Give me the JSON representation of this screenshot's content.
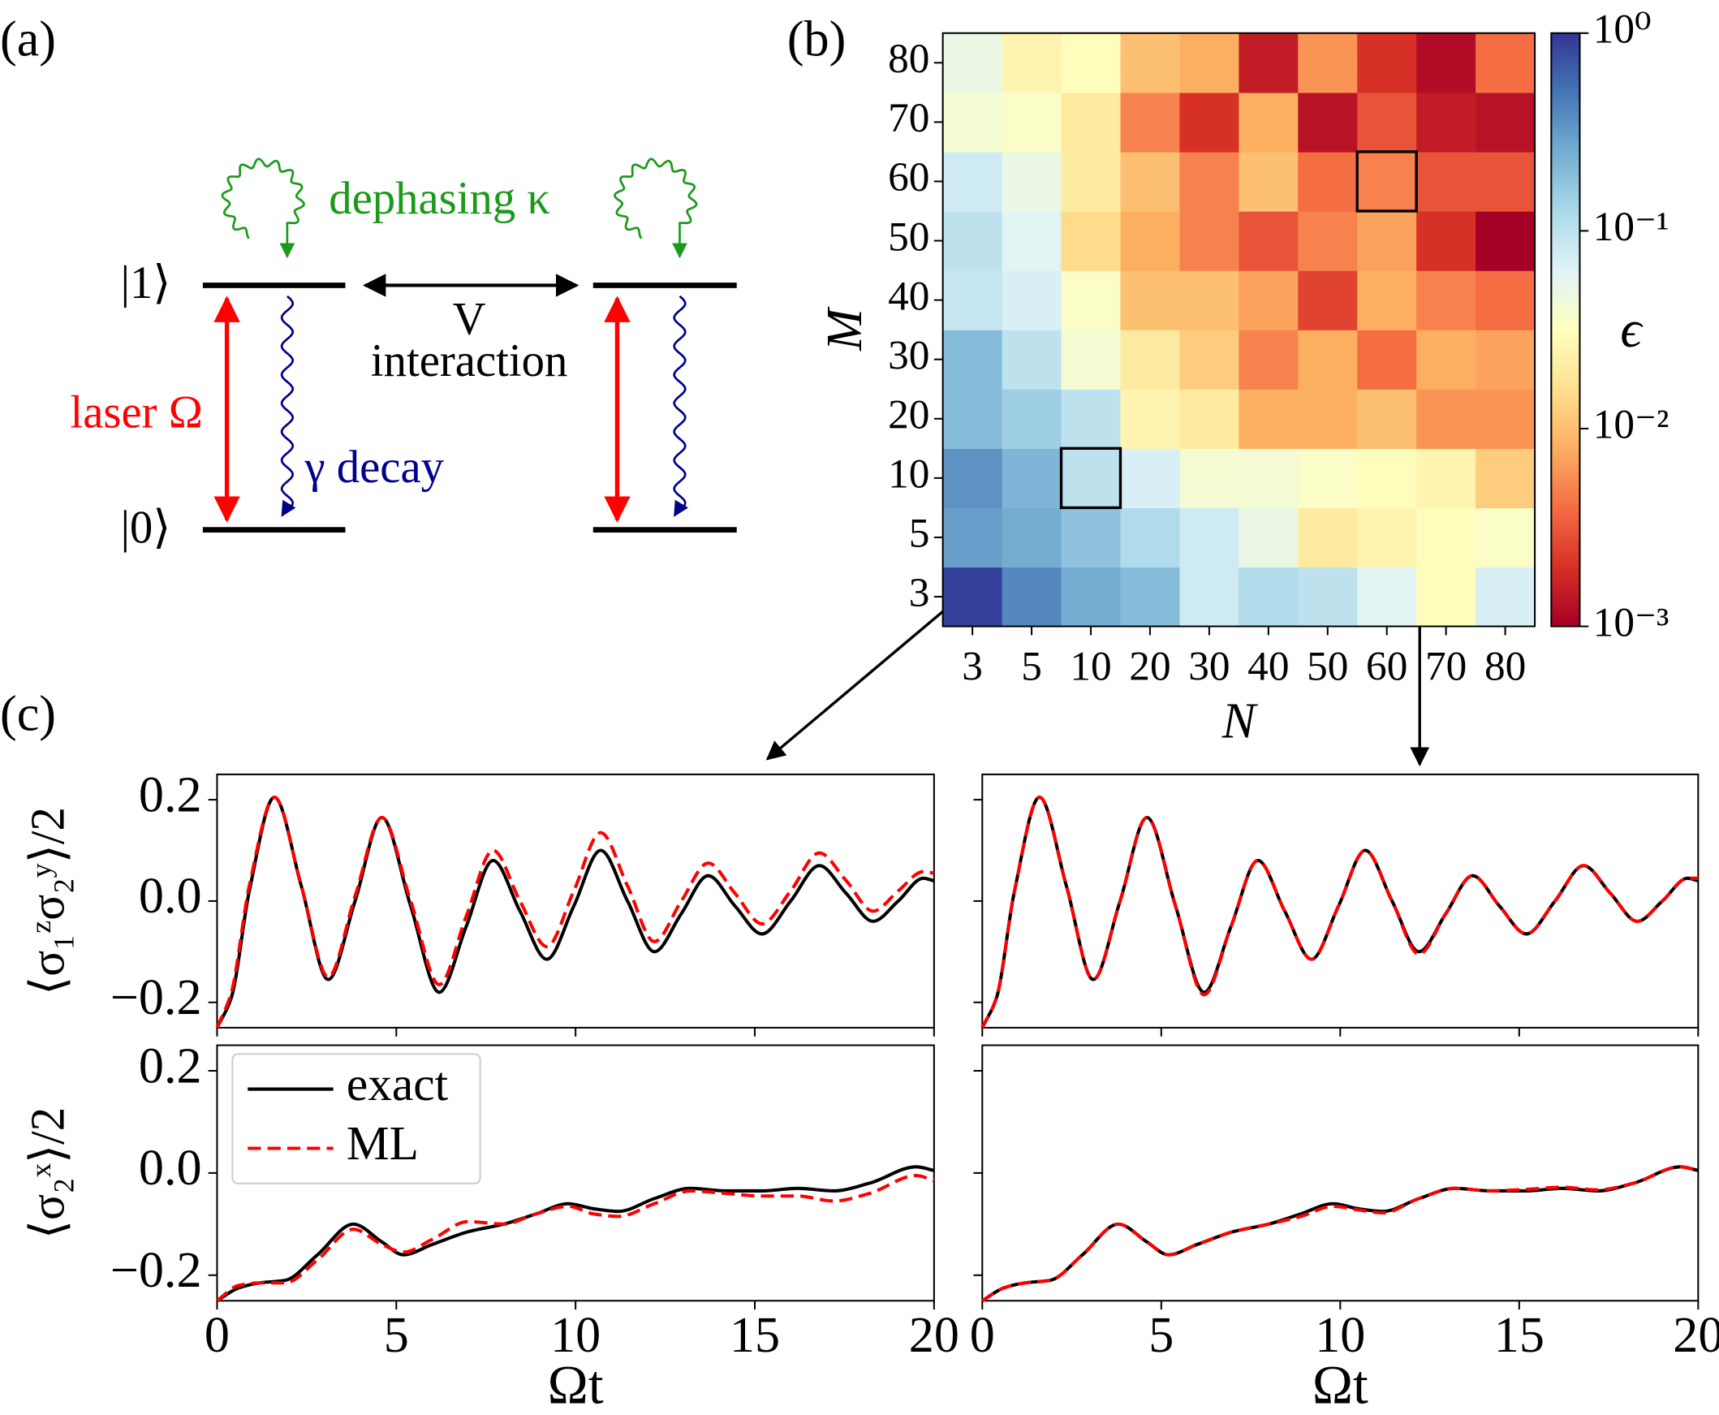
{
  "panel_labels": [
    "(a)",
    "(b)",
    "(c)"
  ],
  "diagram": {
    "dephasing": "dephasing κ",
    "level1_left": "|1⟩",
    "level0_left": "|0⟩",
    "interaction_symbol": "V",
    "interaction": "interaction",
    "laser": "laser Ω",
    "decay": "γ decay"
  },
  "chart_data": [
    {
      "type": "heatmap",
      "xlabel": "N",
      "ylabel": "M",
      "x_categories": [
        3,
        5,
        10,
        20,
        30,
        40,
        50,
        60,
        70,
        80
      ],
      "y_categories": [
        3,
        5,
        10,
        20,
        30,
        40,
        50,
        60,
        70,
        80
      ],
      "values": [
        [
          0.9,
          0.4,
          0.25,
          0.2,
          0.08,
          0.12,
          0.1,
          0.06,
          0.03,
          0.07
        ],
        [
          0.3,
          0.25,
          0.18,
          0.12,
          0.08,
          0.05,
          0.02,
          0.025,
          0.03,
          0.035
        ],
        [
          0.35,
          0.22,
          0.1,
          0.07,
          0.04,
          0.04,
          0.035,
          0.03,
          0.025,
          0.012
        ],
        [
          0.2,
          0.15,
          0.1,
          0.025,
          0.02,
          0.008,
          0.008,
          0.01,
          0.006,
          0.006
        ],
        [
          0.2,
          0.1,
          0.04,
          0.02,
          0.012,
          0.005,
          0.008,
          0.004,
          0.008,
          0.007
        ],
        [
          0.09,
          0.07,
          0.035,
          0.01,
          0.01,
          0.007,
          0.0025,
          0.008,
          0.005,
          0.004
        ],
        [
          0.1,
          0.06,
          0.015,
          0.008,
          0.005,
          0.003,
          0.005,
          0.007,
          0.002,
          0.001
        ],
        [
          0.08,
          0.05,
          0.02,
          0.01,
          0.005,
          0.01,
          0.004,
          0.005,
          0.003,
          0.003
        ],
        [
          0.04,
          0.035,
          0.02,
          0.005,
          0.002,
          0.008,
          0.0013,
          0.003,
          0.0015,
          0.0013
        ],
        [
          0.05,
          0.025,
          0.03,
          0.01,
          0.008,
          0.0015,
          0.006,
          0.002,
          0.0012,
          0.004
        ]
      ],
      "colormap": "RdYlBu_r",
      "color_log_scale": true,
      "clim": [
        0.001,
        1
      ],
      "cticks": [
        {
          "value": 1,
          "label": "10⁰"
        },
        {
          "value": 0.1,
          "label": "10⁻¹"
        },
        {
          "value": 0.01,
          "label": "10⁻²"
        },
        {
          "value": 0.001,
          "label": "10⁻³"
        }
      ],
      "colorbar_label": "ϵ"
    },
    {
      "type": "line",
      "ylabel": "⟨σ₁ᶻσ₂ʸ⟩/2",
      "x": [
        0,
        0.4,
        0.9,
        1.6,
        2.35,
        3.1,
        3.85,
        4.6,
        5.4,
        6.2,
        6.95,
        7.7,
        8.45,
        9.2,
        9.95,
        10.7,
        11.45,
        12.2,
        12.95,
        13.7,
        14.45,
        15.2,
        16.0,
        16.8,
        17.55,
        18.3,
        19.0,
        19.7,
        20
      ],
      "series": [
        {
          "name": "exact",
          "color": "#000000",
          "linestyle": "solid",
          "values": [
            -0.25,
            -0.19,
            0.02,
            0.205,
            0.03,
            -0.155,
            0.0,
            0.165,
            -0.01,
            -0.18,
            -0.05,
            0.08,
            -0.02,
            -0.115,
            -0.01,
            0.1,
            0.0,
            -0.1,
            -0.025,
            0.05,
            -0.01,
            -0.065,
            0.0,
            0.07,
            0.015,
            -0.04,
            0.0,
            0.045,
            0.04
          ]
        },
        {
          "name": "ML",
          "color": "#ff0000",
          "linestyle": "dashed",
          "values": [
            -0.25,
            -0.18,
            0.03,
            0.205,
            0.03,
            -0.15,
            0.01,
            0.165,
            0.0,
            -0.165,
            -0.03,
            0.1,
            0.0,
            -0.09,
            0.02,
            0.135,
            0.03,
            -0.08,
            0.0,
            0.075,
            0.015,
            -0.045,
            0.02,
            0.095,
            0.04,
            -0.02,
            0.02,
            0.058,
            0.055
          ]
        }
      ],
      "xlim": [
        0,
        20
      ],
      "xticks": [
        0,
        5,
        10,
        15,
        20
      ],
      "xtick_labels": false,
      "ylim": [
        -0.25,
        0.25
      ],
      "yticks": [
        {
          "value": -0.2,
          "label": "−0.2"
        },
        {
          "value": 0,
          "label": "0.0"
        },
        0.2
      ],
      "ytick_labels": true
    },
    {
      "type": "line",
      "x": [
        0,
        0.4,
        0.9,
        1.6,
        2.35,
        3.1,
        3.85,
        4.6,
        5.4,
        6.2,
        6.95,
        7.7,
        8.45,
        9.2,
        9.95,
        10.7,
        11.45,
        12.2,
        12.95,
        13.7,
        14.45,
        15.2,
        16.0,
        16.8,
        17.55,
        18.3,
        19.0,
        19.7,
        20
      ],
      "series": [
        {
          "name": "exact",
          "color": "#000000",
          "linestyle": "solid",
          "values": [
            -0.25,
            -0.19,
            0.02,
            0.205,
            0.03,
            -0.155,
            0.0,
            0.165,
            -0.01,
            -0.18,
            -0.05,
            0.08,
            -0.02,
            -0.115,
            -0.01,
            0.1,
            0.0,
            -0.1,
            -0.025,
            0.05,
            -0.01,
            -0.065,
            0.0,
            0.07,
            0.015,
            -0.04,
            0.0,
            0.045,
            0.04
          ]
        },
        {
          "name": "ML",
          "color": "#ff0000",
          "linestyle": "dashed",
          "values": [
            -0.25,
            -0.19,
            0.02,
            0.205,
            0.03,
            -0.155,
            0.0,
            0.165,
            -0.01,
            -0.185,
            -0.05,
            0.08,
            -0.02,
            -0.115,
            -0.01,
            0.1,
            0.0,
            -0.105,
            -0.025,
            0.05,
            -0.01,
            -0.065,
            0.0,
            0.07,
            0.015,
            -0.04,
            0.0,
            0.045,
            0.045
          ]
        }
      ],
      "xlim": [
        0,
        20
      ],
      "xticks": [
        0,
        5,
        10,
        15,
        20
      ],
      "xtick_labels": false,
      "ylim": [
        -0.25,
        0.25
      ],
      "yticks": [
        -0.2,
        0,
        0.2
      ],
      "ytick_labels": false
    },
    {
      "type": "line",
      "ylabel": "⟨σ₂ˣ⟩/2",
      "xlabel": "Ωt",
      "legend": "upper left",
      "x": [
        0,
        0.6,
        1.2,
        1.9,
        2.8,
        3.8,
        4.6,
        5.2,
        6.0,
        7.0,
        8.0,
        8.9,
        9.8,
        10.5,
        11.2,
        12.2,
        13.2,
        14.2,
        15.2,
        16.2,
        17.2,
        18.2,
        19.5,
        20
      ],
      "series": [
        {
          "name": "exact",
          "color": "#000000",
          "linestyle": "solid",
          "values": [
            -0.25,
            -0.225,
            -0.215,
            -0.21,
            -0.16,
            -0.1,
            -0.135,
            -0.16,
            -0.14,
            -0.115,
            -0.1,
            -0.08,
            -0.06,
            -0.07,
            -0.075,
            -0.05,
            -0.03,
            -0.035,
            -0.035,
            -0.03,
            -0.035,
            -0.02,
            0.012,
            0.005
          ]
        },
        {
          "name": "ML",
          "color": "#ff0000",
          "linestyle": "dashed",
          "values": [
            -0.25,
            -0.22,
            -0.215,
            -0.215,
            -0.17,
            -0.11,
            -0.14,
            -0.155,
            -0.13,
            -0.095,
            -0.1,
            -0.08,
            -0.065,
            -0.08,
            -0.085,
            -0.06,
            -0.035,
            -0.04,
            -0.045,
            -0.045,
            -0.055,
            -0.04,
            -0.005,
            -0.015
          ]
        }
      ],
      "xlim": [
        0,
        20
      ],
      "xticks": [
        0,
        5,
        10,
        15,
        20
      ],
      "xtick_labels": true,
      "ylim": [
        -0.25,
        0.25
      ],
      "yticks": [
        {
          "value": -0.2,
          "label": "−0.2"
        },
        {
          "value": 0,
          "label": "0.0"
        },
        0.2
      ],
      "ytick_labels": true
    },
    {
      "type": "line",
      "xlabel": "Ωt",
      "x": [
        0,
        0.6,
        1.2,
        1.9,
        2.8,
        3.8,
        4.6,
        5.2,
        6.0,
        7.0,
        8.0,
        8.9,
        9.8,
        10.5,
        11.2,
        12.2,
        13.2,
        14.2,
        15.2,
        16.2,
        17.2,
        18.2,
        19.5,
        20
      ],
      "series": [
        {
          "name": "exact",
          "color": "#000000",
          "linestyle": "solid",
          "values": [
            -0.25,
            -0.225,
            -0.215,
            -0.21,
            -0.16,
            -0.1,
            -0.135,
            -0.16,
            -0.14,
            -0.115,
            -0.1,
            -0.08,
            -0.06,
            -0.07,
            -0.075,
            -0.05,
            -0.03,
            -0.035,
            -0.035,
            -0.03,
            -0.035,
            -0.02,
            0.012,
            0.005
          ]
        },
        {
          "name": "ML",
          "color": "#ff0000",
          "linestyle": "dashed",
          "values": [
            -0.25,
            -0.225,
            -0.215,
            -0.21,
            -0.16,
            -0.1,
            -0.135,
            -0.16,
            -0.14,
            -0.115,
            -0.1,
            -0.085,
            -0.065,
            -0.072,
            -0.078,
            -0.05,
            -0.03,
            -0.035,
            -0.032,
            -0.028,
            -0.033,
            -0.02,
            0.012,
            0.005
          ]
        }
      ],
      "xlim": [
        0,
        20
      ],
      "xticks": [
        0,
        5,
        10,
        15,
        20
      ],
      "xtick_labels": true,
      "ylim": [
        -0.25,
        0.25
      ],
      "yticks": [
        -0.2,
        0,
        0.2
      ],
      "ytick_labels": false
    }
  ]
}
